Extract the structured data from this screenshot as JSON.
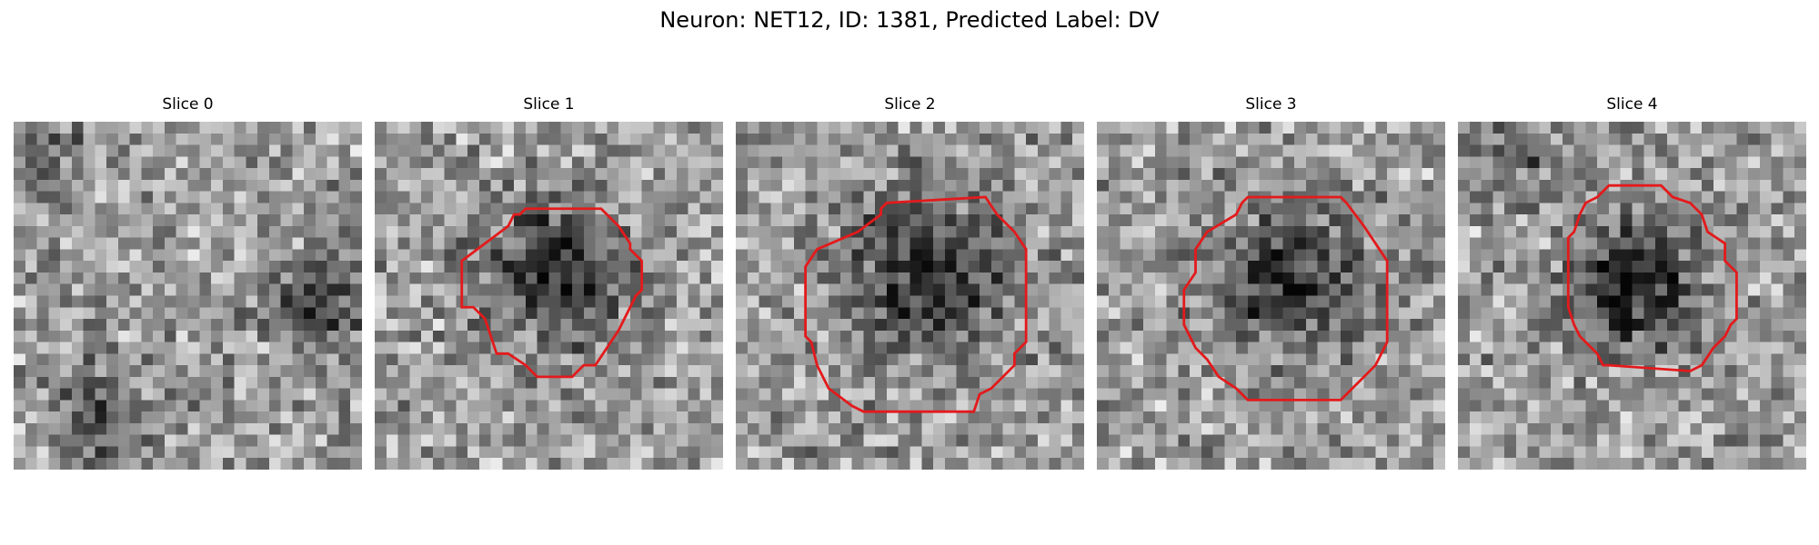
{
  "figure": {
    "title": "Neuron: NET12, ID: 1381, Predicted Label: DV"
  },
  "panels": [
    {
      "title": "Slice 0",
      "has_contour": false
    },
    {
      "title": "Slice 1",
      "has_contour": true
    },
    {
      "title": "Slice 2",
      "has_contour": true
    },
    {
      "title": "Slice 3",
      "has_contour": true
    },
    {
      "title": "Slice 4",
      "has_contour": true
    }
  ],
  "colors": {
    "contour": "#e31a1c",
    "background": "#ffffff"
  }
}
